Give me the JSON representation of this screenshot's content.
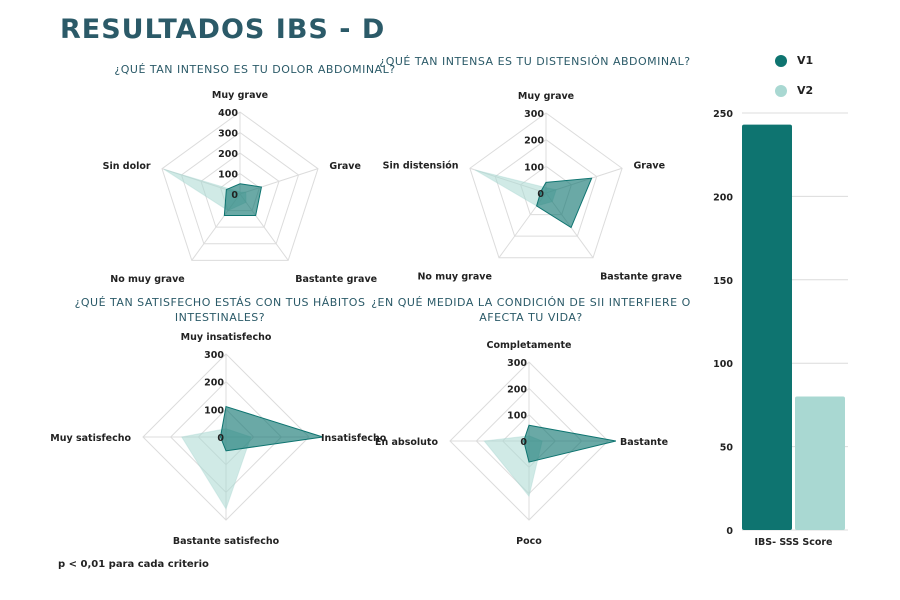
{
  "title": "RESULTADOS IBS - D",
  "footnote": "p < 0,01 para cada criterio",
  "colors": {
    "v1": "#0e7470",
    "v2": "#a9d8d2",
    "title": "#2b5a68",
    "grid": "#dcdcdc"
  },
  "chart_data": [
    {
      "type": "radar",
      "title": "¿QUÉ TAN INTENSO ES TU DOLOR ABDOMINAL?",
      "axes": [
        "Muy grave",
        "Grave",
        "Bastante grave",
        "No muy grave",
        "Sin dolor"
      ],
      "ticks": [
        0,
        100,
        200,
        300,
        400
      ],
      "rmax": 400,
      "series": [
        {
          "name": "V1",
          "values": [
            50,
            110,
            130,
            130,
            70
          ]
        },
        {
          "name": "V2",
          "values": [
            10,
            30,
            50,
            100,
            390
          ]
        }
      ]
    },
    {
      "type": "radar",
      "title": "¿QUÉ TAN INTENSA ES TU DISTENSIÓN ABDOMINAL?",
      "axes": [
        "Muy grave",
        "Grave",
        "Bastante grave",
        "No muy grave",
        "Sin distensión"
      ],
      "ticks": [
        0,
        100,
        200,
        300
      ],
      "rmax": 300,
      "series": [
        {
          "name": "V1",
          "values": [
            40,
            180,
            160,
            60,
            20
          ]
        },
        {
          "name": "V2",
          "values": [
            20,
            40,
            40,
            60,
            280
          ]
        }
      ]
    },
    {
      "type": "radar",
      "title": "¿QUÉ TAN SATISFECHO ESTÁS CON TUS HÁBITOS INTESTINALES?",
      "axes": [
        "Muy insatisfecho",
        "Insatisfecho",
        "Bastante satisfecho",
        "Muy satisfecho"
      ],
      "ticks": [
        0,
        100,
        200,
        300
      ],
      "rmax": 300,
      "series": [
        {
          "name": "V1",
          "values": [
            110,
            350,
            50,
            20
          ]
        },
        {
          "name": "V2",
          "values": [
            30,
            90,
            260,
            160
          ]
        }
      ]
    },
    {
      "type": "radar",
      "title": "¿EN QUÉ MEDIDA LA CONDICIÓN DE SII INTERFIERE O AFECTA TU VIDA?",
      "axes": [
        "Completamente",
        "Bastante",
        "Poco",
        "En absoluto"
      ],
      "ticks": [
        0,
        100,
        200,
        300
      ],
      "rmax": 300,
      "series": [
        {
          "name": "V1",
          "values": [
            60,
            330,
            80,
            20
          ]
        },
        {
          "name": "V2",
          "values": [
            20,
            50,
            210,
            170
          ]
        }
      ]
    },
    {
      "type": "bar",
      "categories": [
        "IBS- SSS Score"
      ],
      "series": [
        {
          "name": "V1",
          "values": [
            243
          ]
        },
        {
          "name": "V2",
          "values": [
            80
          ]
        }
      ],
      "yticks": [
        0,
        50,
        100,
        150,
        200,
        250
      ],
      "ylim": [
        0,
        250
      ],
      "legend": "top"
    }
  ]
}
